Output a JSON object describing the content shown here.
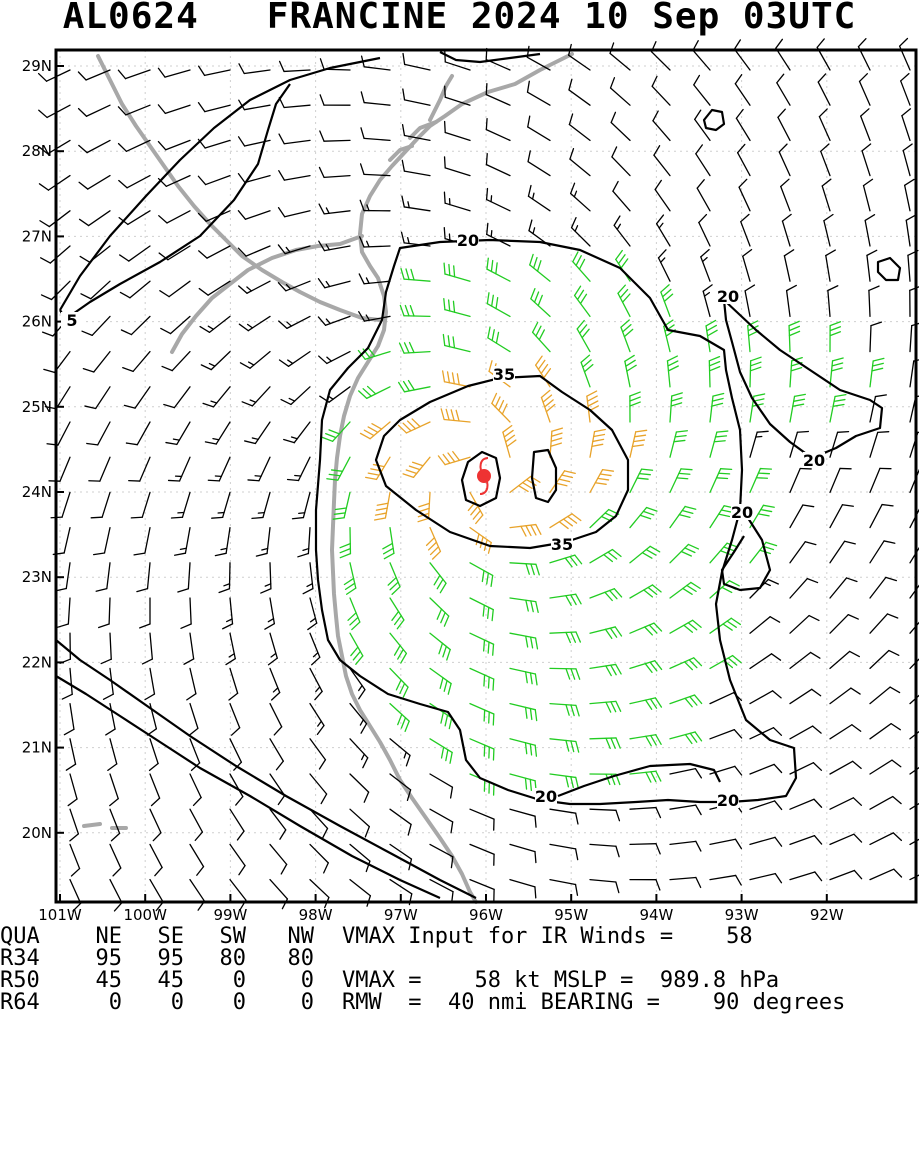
{
  "title": "AL0624   FRANCINE 2024 10 Sep 03UTC",
  "colors": {
    "background": "#ffffff",
    "frame": "#000000",
    "coastline": "#a8a8a8",
    "barb_weak": "#000000",
    "barb_34kt": "#22cc22",
    "barb_50kt": "#e8a32a",
    "storm_center": "#ee3333",
    "contour": "#000000"
  },
  "map": {
    "lon_labels": [
      "101W",
      "100W",
      "99W",
      "98W",
      "97W",
      "96W",
      "95W",
      "94W",
      "93W",
      "92W"
    ],
    "lat_labels": [
      "29N",
      "28N",
      "27N",
      "26N",
      "25N",
      "24N",
      "23N",
      "22N",
      "21N",
      "20N"
    ],
    "contour_labels": [
      "20",
      "20",
      "20",
      "20",
      "35",
      "35",
      "5",
      "20",
      "20"
    ],
    "storm_center": {
      "lon": -96.0,
      "lat": 24.2
    }
  },
  "table": {
    "header": [
      "QUA",
      "NE",
      "SE",
      "SW",
      "NW"
    ],
    "rows": [
      [
        "R34",
        "95",
        "95",
        "80",
        "80"
      ],
      [
        "R50",
        "45",
        "45",
        "0",
        "0"
      ],
      [
        "R64",
        "0",
        "0",
        "0",
        "0"
      ]
    ],
    "vmax_input_line": "VMAX Input for IR Winds =    58",
    "vmax_mslp_line": "VMAX =    58 kt MSLP =  989.8 hPa",
    "rmw_line": "RMW  =  40 nmi BEARING =    90 degrees"
  }
}
